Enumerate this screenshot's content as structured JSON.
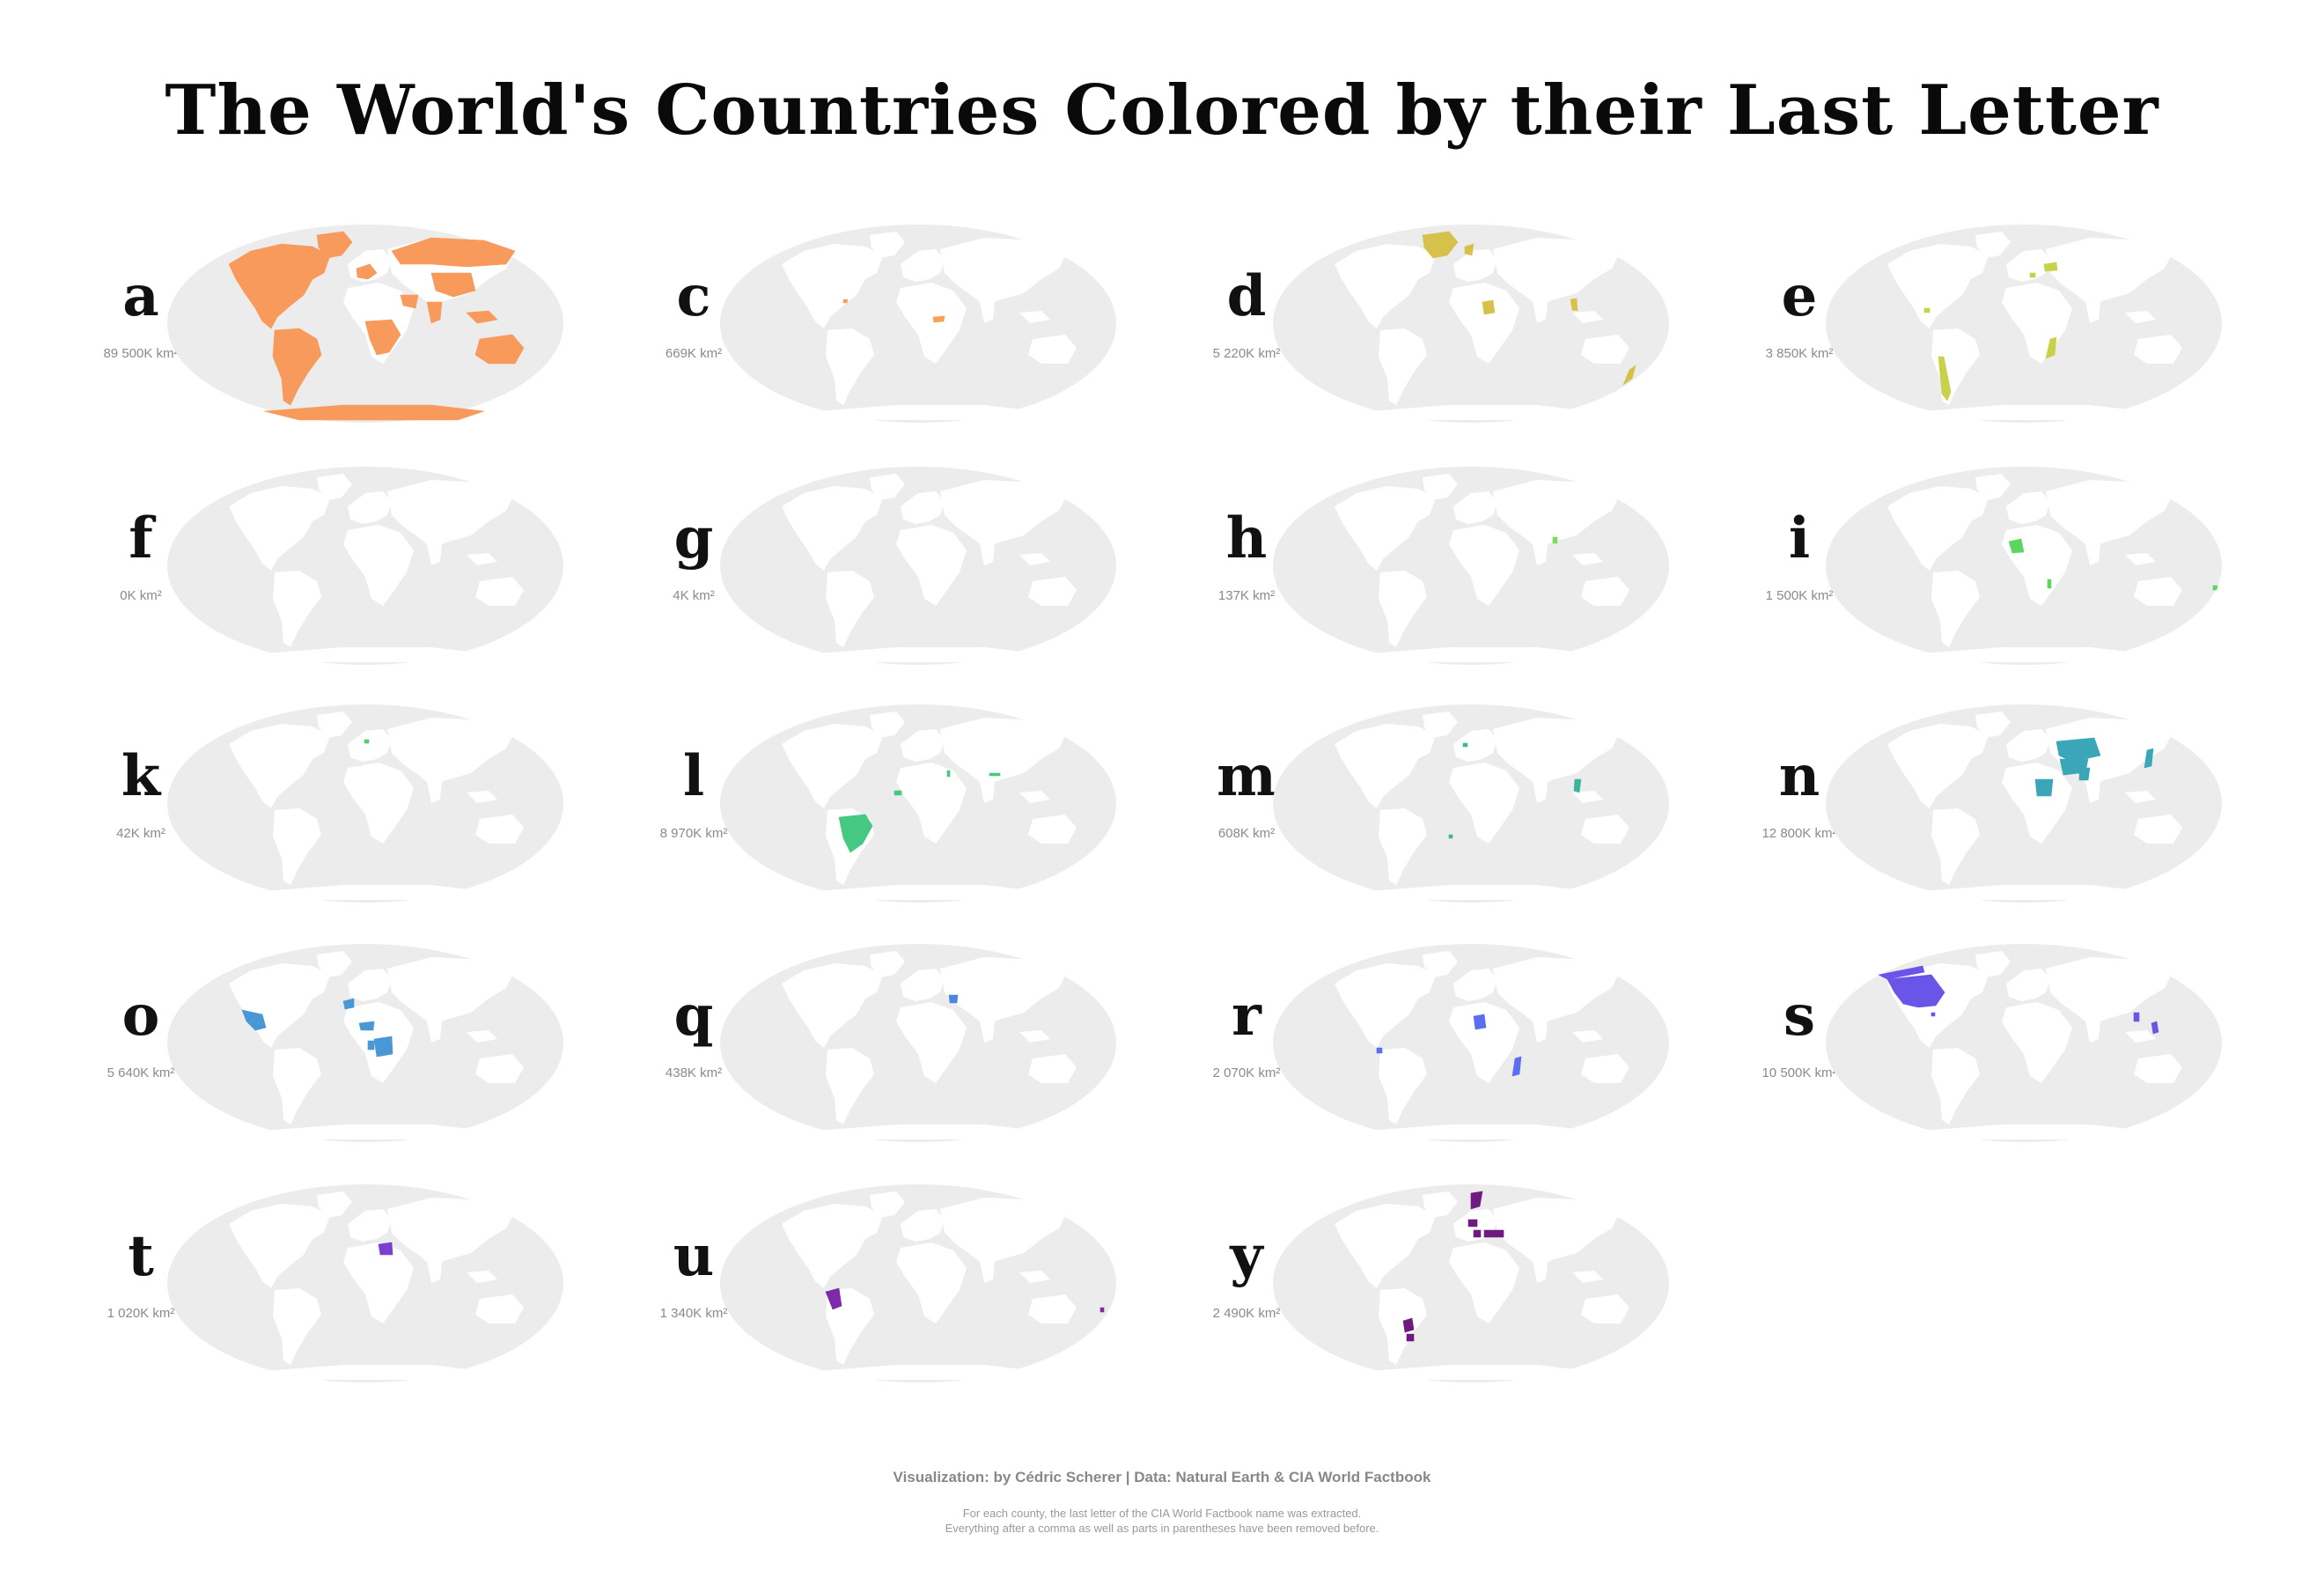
{
  "title": "The World's Countries Colored by their Last Letter",
  "footer": {
    "credit": "Visualization: by Cédric Scherer | Data: Natural Earth & CIA World Factbook",
    "note_line1": "For each county, the last letter of the CIA World Factbook name was extracted.",
    "note_line2": "Everything after a comma as well as parts in parentheses have been removed before."
  },
  "colors": {
    "ocean": "#ececec",
    "land": "#ffffff"
  },
  "panels": [
    {
      "letter": "a",
      "area": "89 500K km²",
      "color": "#f79a5c",
      "regions": [
        "na",
        "greenland",
        "russia",
        "sa",
        "africa",
        "australia",
        "antarctica",
        "europe",
        "india",
        "china",
        "se_asia",
        "arabia"
      ]
    },
    {
      "letter": "c",
      "area": "669K km²",
      "color": "#f7a350",
      "regions": [
        "car",
        "c_africa"
      ]
    },
    {
      "letter": "d",
      "area": "5 220K km²",
      "color": "#d6c24a",
      "regions": [
        "greenland",
        "chad",
        "thailand",
        "nz",
        "scandinavia",
        "iceland"
      ]
    },
    {
      "letter": "e",
      "area": "3 850K km²",
      "color": "#c7d14a",
      "regions": [
        "chile",
        "mozambique",
        "ukraine",
        "belize",
        "europe_bits"
      ]
    },
    {
      "letter": "f",
      "area": "0K km²",
      "color": "#b5d84a",
      "regions": []
    },
    {
      "letter": "g",
      "area": "4K km²",
      "color": "#a0dd4e",
      "regions": []
    },
    {
      "letter": "h",
      "area": "137K km²",
      "color": "#7ddc5a",
      "regions": [
        "bangladesh"
      ]
    },
    {
      "letter": "i",
      "area": "1 500K km²",
      "color": "#5ed55e",
      "regions": [
        "mali",
        "malawi",
        "fiji"
      ]
    },
    {
      "letter": "k",
      "area": "42K km²",
      "color": "#4fcf6c",
      "regions": [
        "denmark"
      ]
    },
    {
      "letter": "l",
      "area": "8 970K km²",
      "color": "#45c882",
      "regions": [
        "brazil",
        "senegal",
        "israel",
        "nepal"
      ]
    },
    {
      "letter": "m",
      "area": "608K km²",
      "color": "#3fb29a",
      "regions": [
        "vietnam",
        "belgium",
        "uk_small"
      ]
    },
    {
      "letter": "n",
      "area": "12 800K km²",
      "color": "#3aa6b8",
      "regions": [
        "kazakhstan",
        "iran",
        "sudan",
        "japan",
        "afghanistan",
        "pakistan"
      ]
    },
    {
      "letter": "o",
      "area": "5 640K km²",
      "color": "#4a97d6",
      "regions": [
        "mexico",
        "morocco",
        "niger",
        "drc",
        "congo"
      ]
    },
    {
      "letter": "q",
      "area": "438K km²",
      "color": "#4d86e2",
      "regions": [
        "iraq"
      ]
    },
    {
      "letter": "r",
      "area": "2 070K km²",
      "color": "#5b6ef0",
      "regions": [
        "niger_r",
        "madagascar",
        "ecuador"
      ]
    },
    {
      "letter": "s",
      "area": "10 500K km²",
      "color": "#6a55e8",
      "regions": [
        "usa",
        "canada_is",
        "philippines",
        "bahamas",
        "laos"
      ]
    },
    {
      "letter": "t",
      "area": "1 020K km²",
      "color": "#7a3fd0",
      "regions": [
        "egypt"
      ]
    },
    {
      "letter": "u",
      "area": "1 340K km²",
      "color": "#7e2aa8",
      "regions": [
        "peru",
        "tuvalu"
      ]
    },
    {
      "letter": "y",
      "area": "2 490K km²",
      "color": "#6e1a7e",
      "regions": [
        "norway",
        "germany",
        "turkey",
        "italy",
        "paraguay",
        "uruguay"
      ]
    }
  ]
}
